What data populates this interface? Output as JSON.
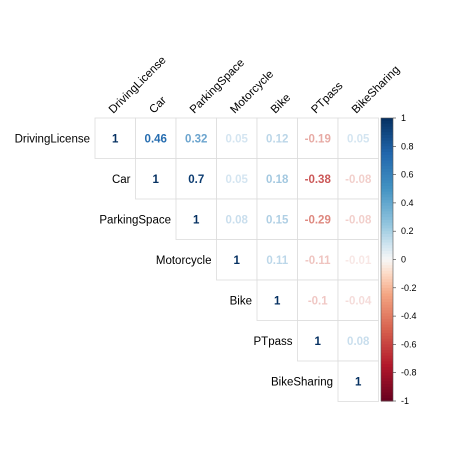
{
  "chart_data": {
    "type": "heatmap",
    "variables": [
      "DrivingLicense",
      "Car",
      "ParkingSpace",
      "Motorcycle",
      "Bike",
      "PTpass",
      "BikeSharing"
    ],
    "matrix": [
      [
        1,
        0.46,
        0.32,
        0.05,
        0.12,
        -0.19,
        0.05
      ],
      [
        null,
        1,
        0.7,
        0.05,
        0.18,
        -0.38,
        -0.08
      ],
      [
        null,
        null,
        1,
        0.08,
        0.15,
        -0.29,
        -0.08
      ],
      [
        null,
        null,
        null,
        1,
        0.11,
        -0.11,
        -0.01
      ],
      [
        null,
        null,
        null,
        null,
        1,
        -0.1,
        -0.04
      ],
      [
        null,
        null,
        null,
        null,
        null,
        1,
        0.08
      ],
      [
        null,
        null,
        null,
        null,
        null,
        null,
        1
      ]
    ],
    "labels": [
      [
        "1",
        "0.46",
        "0.32",
        "0.05",
        "0.12",
        "-0.19",
        "0.05"
      ],
      [
        null,
        "1",
        "0.7",
        "0.05",
        "0.18",
        "-0.38",
        "-0.08"
      ],
      [
        null,
        null,
        "1",
        "0.08",
        "0.15",
        "-0.29",
        "-0.08"
      ],
      [
        null,
        null,
        null,
        "1",
        "0.11",
        "-0.11",
        "-0.01"
      ],
      [
        null,
        null,
        null,
        null,
        "1",
        "-0.1",
        "-0.04"
      ],
      [
        null,
        null,
        null,
        null,
        null,
        "1",
        "0.08"
      ],
      [
        null,
        null,
        null,
        null,
        null,
        null,
        "1"
      ]
    ],
    "layout": "upper-triangle",
    "colorbar": {
      "range": [
        -1,
        1
      ],
      "ticks": [
        "1",
        "0.8",
        "0.6",
        "0.4",
        "0.2",
        "0",
        "-0.2",
        "-0.4",
        "-0.6",
        "-0.8",
        "-1"
      ],
      "high_color": "#053061",
      "mid_color": "#F7F7F7",
      "low_color": "#67001F"
    }
  }
}
